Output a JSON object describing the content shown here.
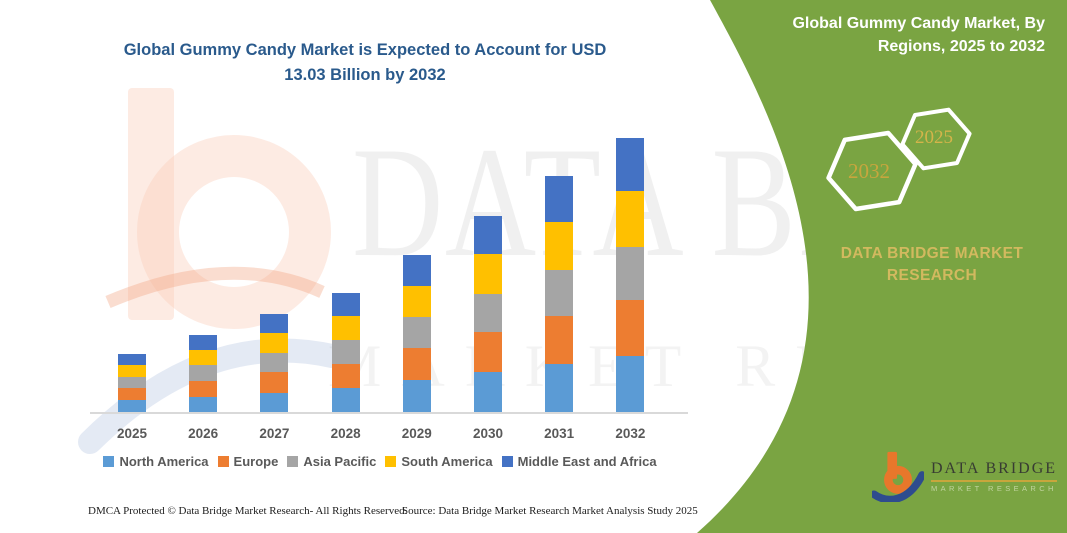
{
  "colors": {
    "panel_green": "#7AA442",
    "title_blue": "#2A5A8C",
    "gold_caption": "#D2B95F",
    "gold_year": "#C7A63E",
    "axis_gray": "#D9D9D9",
    "label_gray": "#595959",
    "logo_orange": "#E8772B",
    "logo_blue": "#2E4C8E"
  },
  "chart_title": {
    "line1": "Global Gummy Candy Market is Expected to Account for USD",
    "line2": "13.03 Billion by 2032"
  },
  "panel": {
    "heading_line1": "Global Gummy Candy Market, By",
    "heading_line2": "Regions, 2025 to 2032",
    "hexagons": [
      {
        "label": "2032"
      },
      {
        "label": "2025"
      }
    ],
    "brand_caption_line1": "DATA BRIDGE MARKET",
    "brand_caption_line2": "RESEARCH"
  },
  "watermark": {
    "line1": "DATA BRIDGE",
    "line2": "MARKET RESEARCH"
  },
  "brand_logo": {
    "name": "DATA BRIDGE",
    "subtitle": "MARKET RESEARCH"
  },
  "footer": {
    "dmca": "DMCA Protected © Data Bridge Market Research-  All Rights Reserved.",
    "source": "Source: Data Bridge Market Research  Market Analysis Study 2025"
  },
  "chart_data": {
    "type": "bar",
    "stacked": true,
    "title": "Global Gummy Candy Market is Expected to Account for USD 13.03 Billion by 2032",
    "unit": "USD Billion",
    "xlabel": "",
    "ylabel": "",
    "grid": false,
    "legend_position": "bottom",
    "categories": [
      "2025",
      "2026",
      "2027",
      "2028",
      "2029",
      "2030",
      "2031",
      "2032"
    ],
    "series": [
      {
        "name": "North America",
        "color": "#5B9BD5",
        "values": [
          0.6,
          0.78,
          0.97,
          1.18,
          1.55,
          1.93,
          2.32,
          2.7
        ]
      },
      {
        "name": "Europe",
        "color": "#ED7D31",
        "values": [
          0.57,
          0.76,
          0.96,
          1.16,
          1.52,
          1.9,
          2.28,
          2.64
        ]
      },
      {
        "name": "Asia Pacific",
        "color": "#A5A5A5",
        "values": [
          0.55,
          0.72,
          0.92,
          1.11,
          1.46,
          1.82,
          2.2,
          2.55
        ]
      },
      {
        "name": "South America",
        "color": "#FFC000",
        "values": [
          0.56,
          0.73,
          0.93,
          1.13,
          1.5,
          1.87,
          2.25,
          2.61
        ]
      },
      {
        "name": "Middle East and Africa",
        "color": "#4472C4",
        "values": [
          0.52,
          0.71,
          0.91,
          1.11,
          1.46,
          1.81,
          2.18,
          2.53
        ]
      }
    ],
    "totals": [
      2.8,
      3.7,
      4.69,
      5.69,
      7.49,
      9.33,
      11.23,
      13.03
    ]
  }
}
